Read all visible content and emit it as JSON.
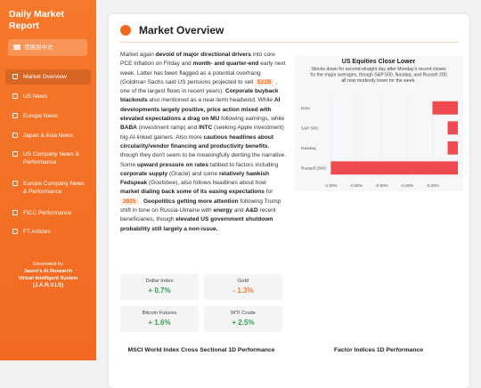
{
  "sidebar": {
    "title": "Daily Market Report",
    "language_button": "切换到中文",
    "nav": {
      "active": 0,
      "items": [
        "Market Overview",
        "US News",
        "Europe News",
        "Japan & Asia News",
        "US Company News & Performance",
        "Europe Company News & Performance",
        "FICC Performance",
        "FT Articles"
      ]
    },
    "footer": [
      "Generated by",
      "Jason's AI Research",
      "Virtual Intelligent System",
      "(J.A.R.V.I.S)"
    ]
  },
  "main": {
    "heading": "Market Overview",
    "paragraph": [
      {
        "text": "Market again "
      },
      {
        "text": "devoid of major directional drivers",
        "style": "bold"
      },
      {
        "text": " into core PCE inflation on Friday and "
      },
      {
        "text": "month- and quarter-end",
        "style": "bold"
      },
      {
        "text": " early next week. Latter has been flagged as a potential overhang (Goldman Sachs said US pensions projected to sell "
      },
      {
        "text": "$22B",
        "style": "highlight"
      },
      {
        "text": " , one of the largest flows in recent years). "
      },
      {
        "text": "Corporate buyback blackouts",
        "style": "bold"
      },
      {
        "text": " also mentioned as a near-term headwind. While "
      },
      {
        "text": "AI developments largely positive, price action mixed with elevated expectations a drag on MU",
        "style": "bold"
      },
      {
        "text": " following earnings, while "
      },
      {
        "text": "BABA",
        "style": "bold"
      },
      {
        "text": " (investment ramp) and "
      },
      {
        "text": "INTC",
        "style": "bold"
      },
      {
        "text": " (seeking Apple investment) big AI-linked gainers. Also more "
      },
      {
        "text": "cautious headlines about circularity/vendor financing and productivity benefits",
        "style": "bold"
      },
      {
        "text": ", though they don't seem to be meaningfully denting the narrative. Some "
      },
      {
        "text": "upward pressure on rates",
        "style": "bold"
      },
      {
        "text": " tabbed to factors including "
      },
      {
        "text": "corporate supply",
        "style": "bold"
      },
      {
        "text": " (Oracle) and some "
      },
      {
        "text": "relatively hawkish Fedspeak",
        "style": "bold"
      },
      {
        "text": " (Goolsbee), also follows headlines about how "
      },
      {
        "text": "market dialing back some of its easing expectations",
        "style": "bold"
      },
      {
        "text": " for "
      },
      {
        "text": "2025",
        "style": "highlight"
      },
      {
        "text": " . "
      },
      {
        "text": "Geopolitics getting more attention",
        "style": "bold"
      },
      {
        "text": " following Trump shift in tone on Russia-Ukraine with "
      },
      {
        "text": "energy",
        "style": "bold"
      },
      {
        "text": " and "
      },
      {
        "text": "A&D",
        "style": "bold"
      },
      {
        "text": " recent beneficiaries, though "
      },
      {
        "text": "elevated US government shutdown probability still largely a non-issue.",
        "style": "bold"
      }
    ],
    "stats": [
      {
        "label": "Dollar Index",
        "value": "+ 0.7%",
        "color": "#2e9e4f"
      },
      {
        "label": "Gold",
        "value": "- 1.3%",
        "color": "#f07a2a"
      },
      {
        "label": "Bitcoin Futures",
        "value": "+ 1.6%",
        "color": "#2e9e4f"
      },
      {
        "label": "WTI Crude",
        "value": "+ 2.5%",
        "color": "#2e9e4f"
      }
    ],
    "sections": [
      "MSCI World Index Cross Sectional 1D Performance",
      "Factor Indices 1D Performance"
    ]
  },
  "chart_data": {
    "type": "barh",
    "title": "US Equities Close Lower",
    "subtitle": "Stocks down for second-straight day after Monday's record closes for the major averages, though S&P 500, Nasdaq, and Russell 200 all now modestly lower for the week.",
    "categories": [
      "Dow",
      "S&P 500",
      "Nasdaq",
      "Russell 2000"
    ],
    "values": [
      -0.2,
      -0.08,
      -0.08,
      -1.0
    ],
    "color": "#ef4a4f",
    "xlim": [
      -1.08,
      0
    ],
    "xticks": [
      {
        "value": -1.0,
        "label": "-1.00%"
      },
      {
        "value": -0.8,
        "label": "-0.80%"
      },
      {
        "value": -0.6,
        "label": "-0.60%"
      },
      {
        "value": -0.4,
        "label": "-0.40%"
      },
      {
        "value": -0.2,
        "label": "-0.20%"
      }
    ],
    "grid": true
  }
}
